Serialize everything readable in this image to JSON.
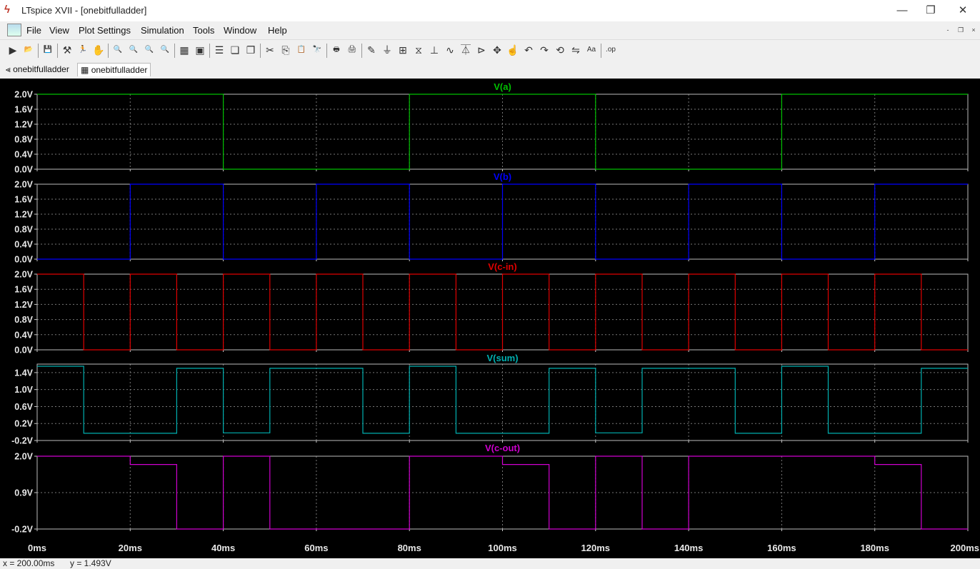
{
  "window": {
    "title": "LTspice XVII - [onebitfulladder]",
    "minimize_glyph": "—",
    "restore_glyph": "❐",
    "close_glyph": "✕",
    "mdi_minimize": "-",
    "mdi_restore": "❐",
    "mdi_close": "×"
  },
  "menu": {
    "items": [
      {
        "label": "File"
      },
      {
        "label": "View"
      },
      {
        "label": "Plot Settings"
      },
      {
        "label": "Simulation"
      },
      {
        "label": "Tools"
      },
      {
        "label": "Window"
      },
      {
        "label": "Help"
      }
    ]
  },
  "toolbar": {
    "buttons": [
      {
        "icon": "run-icon",
        "glyph": "▶"
      },
      {
        "icon": "open-icon",
        "glyph": "📂"
      },
      {
        "icon": "save-icon",
        "glyph": "💾"
      },
      {
        "icon": "control-panel-icon",
        "glyph": "⚒"
      },
      {
        "icon": "run-sim-icon",
        "glyph": "🏃"
      },
      {
        "icon": "pan-hand-icon",
        "glyph": "✋"
      },
      {
        "icon": "zoom-in-icon",
        "glyph": "🔍"
      },
      {
        "icon": "zoom-area-icon",
        "glyph": "🔍"
      },
      {
        "icon": "zoom-out-icon",
        "glyph": "🔍"
      },
      {
        "icon": "zoom-cancel-icon",
        "glyph": "🔍"
      },
      {
        "icon": "autorange-icon",
        "glyph": "▦"
      },
      {
        "icon": "add-trace-icon",
        "glyph": "▣"
      },
      {
        "icon": "tile-horizontal-icon",
        "glyph": "☰"
      },
      {
        "icon": "cascade-icon",
        "glyph": "❏"
      },
      {
        "icon": "tile-vertical-icon",
        "glyph": "❐"
      },
      {
        "icon": "cut-icon",
        "glyph": "✂"
      },
      {
        "icon": "copy-icon",
        "glyph": "⎘"
      },
      {
        "icon": "paste-icon",
        "glyph": "📋"
      },
      {
        "icon": "find-icon",
        "glyph": "🔭"
      },
      {
        "icon": "print-preview-icon",
        "glyph": "🖶"
      },
      {
        "icon": "print-icon",
        "glyph": "🖨"
      },
      {
        "icon": "wire-icon",
        "glyph": "✎"
      },
      {
        "icon": "ground-icon",
        "glyph": "⏚"
      },
      {
        "icon": "label-icon",
        "glyph": "⊞"
      },
      {
        "icon": "resistor-icon",
        "glyph": "⧖"
      },
      {
        "icon": "capacitor-icon",
        "glyph": "⊥"
      },
      {
        "icon": "inductor-icon",
        "glyph": "∿"
      },
      {
        "icon": "diode-icon",
        "glyph": "⏄"
      },
      {
        "icon": "component-icon",
        "glyph": "⊳"
      },
      {
        "icon": "move-icon",
        "glyph": "✥"
      },
      {
        "icon": "drag-icon",
        "glyph": "☝"
      },
      {
        "icon": "undo-icon",
        "glyph": "↶"
      },
      {
        "icon": "redo-icon",
        "glyph": "↷"
      },
      {
        "icon": "rotate-icon",
        "glyph": "⟲"
      },
      {
        "icon": "mirror-icon",
        "glyph": "⇋"
      },
      {
        "icon": "text-icon",
        "glyph": "Aa"
      },
      {
        "icon": "spice-directive-icon",
        "glyph": ".op"
      }
    ]
  },
  "tabs": [
    {
      "label": "onebitfulladder",
      "icon": "schematic-icon",
      "glyph": "⪡"
    },
    {
      "label": "onebitfulladder",
      "icon": "waveform-icon",
      "glyph": "▦"
    }
  ],
  "status": {
    "x_readout": "x = 200.00ms",
    "y_readout": "y = 1.493V"
  },
  "chart_data": {
    "type": "line",
    "x_unit": "ms",
    "x_range": [
      0,
      200
    ],
    "x_ticks": [
      "0ms",
      "20ms",
      "40ms",
      "60ms",
      "80ms",
      "100ms",
      "120ms",
      "140ms",
      "160ms",
      "180ms",
      "200ms"
    ],
    "grid": true,
    "panes": [
      {
        "title": "V(a)",
        "color": "#00c000",
        "ylim": [
          0,
          2.0
        ],
        "y_ticks": [
          "2.0V",
          "1.6V",
          "1.2V",
          "0.8V",
          "0.4V",
          "0.0V"
        ],
        "y_tick_values": [
          2.0,
          1.6,
          1.2,
          0.8,
          0.4,
          0.0
        ],
        "points": [
          [
            0,
            2
          ],
          [
            40,
            2
          ],
          [
            40,
            0
          ],
          [
            80,
            0
          ],
          [
            80,
            2
          ],
          [
            120,
            2
          ],
          [
            120,
            0
          ],
          [
            160,
            0
          ],
          [
            160,
            2
          ],
          [
            200,
            2
          ]
        ]
      },
      {
        "title": "V(b)",
        "color": "#0000ff",
        "ylim": [
          0,
          2.0
        ],
        "y_ticks": [
          "2.0V",
          "1.6V",
          "1.2V",
          "0.8V",
          "0.4V",
          "0.0V"
        ],
        "y_tick_values": [
          2.0,
          1.6,
          1.2,
          0.8,
          0.4,
          0.0
        ],
        "points": [
          [
            0,
            0
          ],
          [
            20,
            0
          ],
          [
            20,
            2
          ],
          [
            40,
            2
          ],
          [
            40,
            0
          ],
          [
            60,
            0
          ],
          [
            60,
            2
          ],
          [
            80,
            2
          ],
          [
            80,
            0
          ],
          [
            100,
            0
          ],
          [
            100,
            2
          ],
          [
            120,
            2
          ],
          [
            120,
            0
          ],
          [
            140,
            0
          ],
          [
            140,
            2
          ],
          [
            160,
            2
          ],
          [
            160,
            0
          ],
          [
            180,
            0
          ],
          [
            180,
            2
          ],
          [
            200,
            2
          ]
        ]
      },
      {
        "title": "V(c-in)",
        "color": "#e00000",
        "ylim": [
          0,
          2.0
        ],
        "y_ticks": [
          "2.0V",
          "1.6V",
          "1.2V",
          "0.8V",
          "0.4V",
          "0.0V"
        ],
        "y_tick_values": [
          2.0,
          1.6,
          1.2,
          0.8,
          0.4,
          0.0
        ],
        "points": [
          [
            0,
            2
          ],
          [
            10,
            2
          ],
          [
            10,
            0
          ],
          [
            20,
            0
          ],
          [
            20,
            2
          ],
          [
            30,
            2
          ],
          [
            30,
            0
          ],
          [
            40,
            0
          ],
          [
            40,
            2
          ],
          [
            50,
            2
          ],
          [
            50,
            0
          ],
          [
            60,
            0
          ],
          [
            60,
            2
          ],
          [
            70,
            2
          ],
          [
            70,
            0
          ],
          [
            80,
            0
          ],
          [
            80,
            2
          ],
          [
            90,
            2
          ],
          [
            90,
            0
          ],
          [
            100,
            0
          ],
          [
            100,
            2
          ],
          [
            110,
            2
          ],
          [
            110,
            0
          ],
          [
            120,
            0
          ],
          [
            120,
            2
          ],
          [
            130,
            2
          ],
          [
            130,
            0
          ],
          [
            140,
            0
          ],
          [
            140,
            2
          ],
          [
            150,
            2
          ],
          [
            150,
            0
          ],
          [
            160,
            0
          ],
          [
            160,
            2
          ],
          [
            170,
            2
          ],
          [
            170,
            0
          ],
          [
            180,
            0
          ],
          [
            180,
            2
          ],
          [
            190,
            2
          ],
          [
            190,
            0
          ],
          [
            200,
            0
          ]
        ]
      },
      {
        "title": "V(sum)",
        "color": "#00b0b0",
        "ylim": [
          -0.2,
          1.6
        ],
        "y_ticks": [
          "1.4V",
          "1.0V",
          "0.6V",
          "0.2V",
          "-0.2V"
        ],
        "y_tick_values": [
          1.4,
          1.0,
          0.6,
          0.2,
          -0.2
        ],
        "points": [
          [
            0,
            1.55
          ],
          [
            10,
            1.55
          ],
          [
            10,
            -0.03
          ],
          [
            30,
            -0.03
          ],
          [
            30,
            1.5
          ],
          [
            40,
            1.5
          ],
          [
            40,
            -0.02
          ],
          [
            50,
            -0.02
          ],
          [
            50,
            1.5
          ],
          [
            70,
            1.5
          ],
          [
            70,
            -0.03
          ],
          [
            80,
            -0.03
          ],
          [
            80,
            1.55
          ],
          [
            90,
            1.55
          ],
          [
            90,
            -0.03
          ],
          [
            110,
            -0.03
          ],
          [
            110,
            1.5
          ],
          [
            120,
            1.5
          ],
          [
            120,
            -0.02
          ],
          [
            130,
            -0.02
          ],
          [
            130,
            1.5
          ],
          [
            150,
            1.5
          ],
          [
            150,
            -0.03
          ],
          [
            160,
            -0.03
          ],
          [
            160,
            1.55
          ],
          [
            170,
            1.55
          ],
          [
            170,
            -0.03
          ],
          [
            190,
            -0.03
          ],
          [
            190,
            1.5
          ],
          [
            200,
            1.5
          ]
        ]
      },
      {
        "title": "V(c-out)",
        "color": "#d000d0",
        "ylim": [
          -0.2,
          2.0
        ],
        "y_ticks": [
          "2.0V",
          "0.9V",
          "-0.2V"
        ],
        "y_tick_values": [
          2.0,
          0.9,
          -0.2
        ],
        "points": [
          [
            0,
            2
          ],
          [
            20,
            2
          ],
          [
            20,
            1.75
          ],
          [
            30,
            1.75
          ],
          [
            30,
            -0.2
          ],
          [
            40,
            -0.2
          ],
          [
            40,
            2
          ],
          [
            50,
            2
          ],
          [
            50,
            -0.2
          ],
          [
            80,
            -0.2
          ],
          [
            80,
            2
          ],
          [
            100,
            2
          ],
          [
            100,
            1.75
          ],
          [
            110,
            1.75
          ],
          [
            110,
            -0.2
          ],
          [
            120,
            -0.2
          ],
          [
            120,
            2
          ],
          [
            130,
            2
          ],
          [
            130,
            -0.2
          ],
          [
            140,
            -0.2
          ],
          [
            140,
            2
          ],
          [
            160,
            2
          ],
          [
            160,
            2
          ],
          [
            180,
            2
          ],
          [
            180,
            1.75
          ],
          [
            190,
            1.75
          ],
          [
            190,
            -0.2
          ],
          [
            200,
            -0.2
          ]
        ]
      }
    ]
  }
}
